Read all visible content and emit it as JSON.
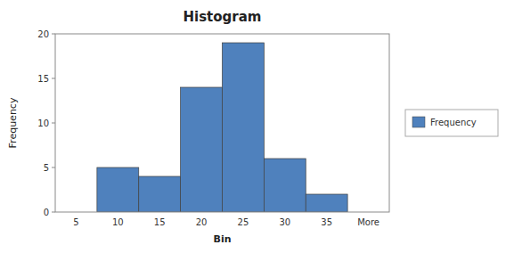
{
  "chart_data": {
    "type": "bar",
    "title": "Histogram",
    "xlabel": "Bin",
    "ylabel": "Frequency",
    "categories": [
      "5",
      "10",
      "15",
      "20",
      "25",
      "30",
      "35",
      "More"
    ],
    "series": [
      {
        "name": "Frequency",
        "color": "#4F81BD",
        "values": [
          0,
          5,
          4,
          14,
          19,
          6,
          2,
          0
        ]
      }
    ],
    "ylim": [
      0,
      20
    ],
    "yticks": [
      0,
      5,
      10,
      15,
      20
    ],
    "grid": false,
    "legend": "right"
  }
}
